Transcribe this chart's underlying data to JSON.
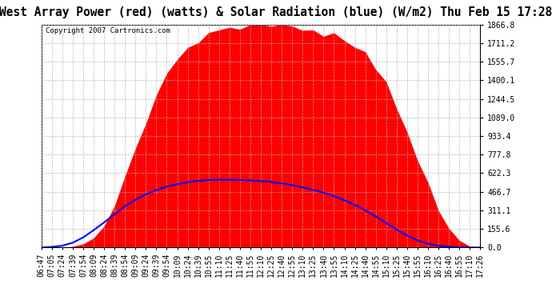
{
  "title": "West Array Power (red) (watts) & Solar Radiation (blue) (W/m2) Thu Feb 15 17:28",
  "copyright": "Copyright 2007 Cartronics.com",
  "yticks": [
    0.0,
    155.6,
    311.1,
    466.7,
    622.3,
    777.8,
    933.4,
    1089.0,
    1244.5,
    1400.1,
    1555.7,
    1711.2,
    1866.8
  ],
  "ymax": 1866.8,
  "ymin": 0.0,
  "xtick_labels": [
    "06:47",
    "07:05",
    "07:24",
    "07:39",
    "07:54",
    "08:09",
    "08:24",
    "08:39",
    "08:54",
    "09:09",
    "09:24",
    "09:39",
    "09:54",
    "10:09",
    "10:24",
    "10:39",
    "10:55",
    "11:10",
    "11:25",
    "11:40",
    "11:55",
    "12:10",
    "12:25",
    "12:40",
    "12:55",
    "13:10",
    "13:25",
    "13:40",
    "13:55",
    "14:10",
    "14:25",
    "14:40",
    "14:55",
    "15:10",
    "15:25",
    "15:40",
    "15:55",
    "16:10",
    "16:25",
    "16:40",
    "16:55",
    "17:10",
    "17:26"
  ],
  "bg_color": "#ffffff",
  "plot_bg_color": "#ffffff",
  "grid_color": "#b0b0b0",
  "red_fill_color": "#ff0000",
  "blue_line_color": "#0000ff",
  "title_fontsize": 10.5,
  "copyright_fontsize": 6.5,
  "tick_fontsize": 7,
  "title_bg": "#d4d4d4",
  "red_values": [
    0,
    0,
    0,
    10,
    30,
    80,
    180,
    350,
    580,
    820,
    1050,
    1280,
    1450,
    1580,
    1680,
    1740,
    1790,
    1820,
    1840,
    1855,
    1862,
    1866,
    1860,
    1858,
    1855,
    1845,
    1830,
    1810,
    1780,
    1740,
    1690,
    1620,
    1520,
    1380,
    1200,
    980,
    750,
    520,
    310,
    160,
    60,
    10,
    0
  ],
  "blue_values": [
    0,
    5,
    15,
    40,
    85,
    145,
    210,
    280,
    345,
    400,
    445,
    482,
    510,
    530,
    548,
    558,
    565,
    568,
    568,
    566,
    562,
    556,
    548,
    537,
    522,
    504,
    483,
    459,
    430,
    396,
    356,
    311,
    260,
    205,
    150,
    100,
    60,
    32,
    15,
    6,
    2,
    0,
    0
  ]
}
